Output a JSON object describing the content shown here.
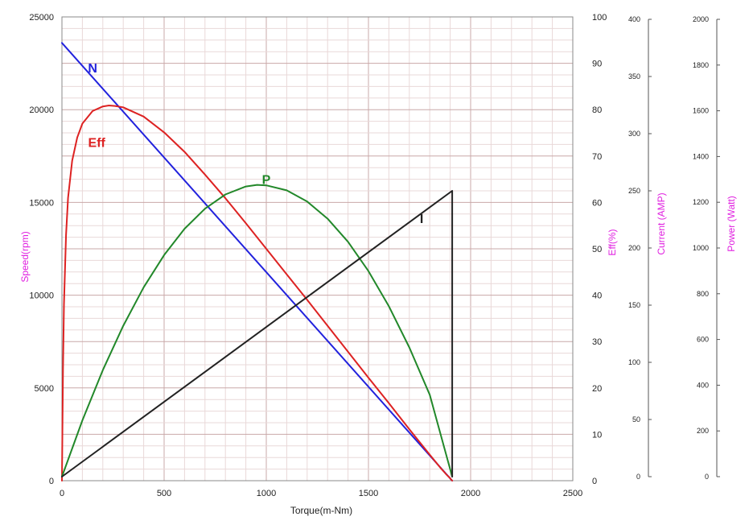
{
  "chart_data": {
    "type": "line",
    "xlabel": "Torque(m-Nm)",
    "xlim": [
      0,
      2500
    ],
    "x_ticks": [
      0,
      500,
      1000,
      1500,
      2000,
      2500
    ],
    "grid": true,
    "colors": {
      "axis_label": "#e020e0",
      "grid_major": "#c9a8a8",
      "grid_minor": "#e9d8d8",
      "N": "#2222dd",
      "Eff": "#dd2222",
      "P": "#22882a",
      "I": "#222222"
    },
    "axes": {
      "speed": {
        "label": "Speed(rpm)",
        "lim": [
          0,
          25000
        ],
        "ticks": [
          0,
          5000,
          10000,
          15000,
          20000,
          25000
        ]
      },
      "eff": {
        "label": "Eff(%)",
        "lim": [
          0,
          100
        ],
        "ticks": [
          0,
          10,
          20,
          30,
          40,
          50,
          60,
          70,
          80,
          90,
          100
        ]
      },
      "current": {
        "label": "Current (AMP)",
        "lim": [
          0,
          400
        ],
        "ticks": [
          0,
          50,
          100,
          150,
          200,
          250,
          300,
          350,
          400
        ]
      },
      "power": {
        "label": "Power (Watt)",
        "lim": [
          0,
          2000
        ],
        "ticks": [
          0,
          200,
          400,
          600,
          800,
          1000,
          1200,
          1400,
          1600,
          1800,
          2000
        ]
      }
    },
    "series": [
      {
        "name": "N",
        "axis": "speed",
        "x": [
          0,
          1910
        ],
        "y": [
          23600,
          0
        ],
        "label_at": [
          150,
          22000
        ]
      },
      {
        "name": "Eff",
        "axis": "eff",
        "x": [
          0,
          5,
          10,
          20,
          30,
          50,
          75,
          100,
          150,
          200,
          230,
          260,
          300,
          400,
          500,
          600,
          700,
          800,
          900,
          1000,
          1100,
          1200,
          1300,
          1400,
          1500,
          1600,
          1700,
          1800,
          1850,
          1880,
          1900,
          1910
        ],
        "y": [
          0,
          24,
          38,
          53,
          61,
          69,
          74,
          77,
          79.7,
          80.7,
          80.9,
          80.8,
          80.5,
          78.5,
          75.1,
          70.9,
          66.0,
          60.9,
          55.5,
          50.0,
          44.5,
          39.0,
          33.4,
          27.8,
          22.2,
          16.7,
          11.1,
          5.6,
          2.9,
          1.4,
          0.5,
          0
        ],
        "label_at": [
          170,
          72
        ]
      },
      {
        "name": "P",
        "axis": "power",
        "x": [
          0,
          100,
          200,
          300,
          400,
          500,
          600,
          700,
          800,
          900,
          955,
          1000,
          1100,
          1200,
          1300,
          1400,
          1500,
          1600,
          1700,
          1800,
          1910
        ],
        "y": [
          0,
          246,
          466,
          660,
          828,
          969,
          1084,
          1172,
          1234,
          1269,
          1276,
          1274,
          1252,
          1203,
          1128,
          1027,
          899,
          745,
          565,
          358,
          0
        ],
        "label_at": [
          1000,
          1280
        ]
      },
      {
        "name": "I",
        "axis": "current",
        "x": [
          0,
          1910,
          1910
        ],
        "y": [
          0,
          250,
          0
        ],
        "label_at": [
          1760,
          222
        ]
      }
    ]
  }
}
